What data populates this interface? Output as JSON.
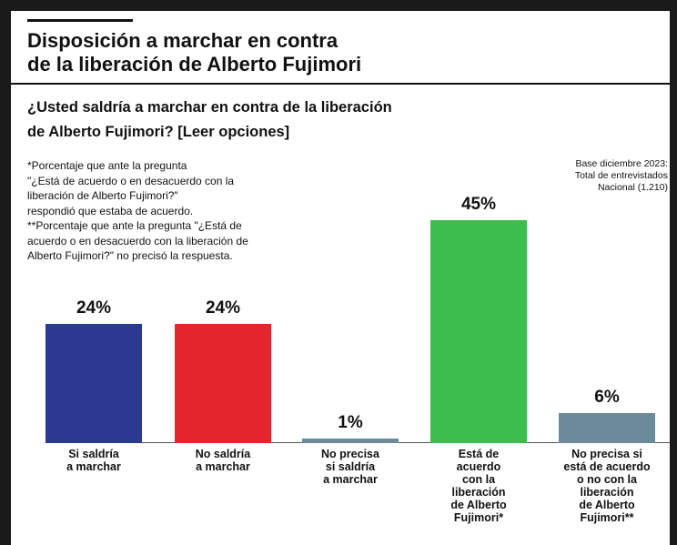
{
  "chart_data": {
    "type": "bar",
    "title": [
      "Disposición a marchar en contra",
      "de la liberación de Alberto Fujimori"
    ],
    "subtitle": [
      "¿Usted saldría a marchar en contra de la liberación",
      "de Alberto Fujimori? [Leer opciones]"
    ],
    "notes": [
      "*Porcentaje que ante la pregunta",
      "\"¿Está de acuerdo o en desacuerdo con la",
      "liberación de Alberto Fujimori?\"",
      "respondió que estaba de acuerdo.",
      "**Porcentaje que ante la pregunta \"¿Está de",
      "acuerdo o en desacuerdo con la liberación de",
      "Alberto Fujimori?\" no precisó la respuesta."
    ],
    "base": [
      "Base diciembre 2023:",
      "Total de entrevistados",
      "Nacional (1.210)"
    ],
    "categories": [
      "Si saldría\na marchar",
      "No saldría\na marchar",
      "No precisa\nsi saldría\na marchar",
      "Está de\nacuerdo\ncon la\nliberación\nde Alberto\nFujimori*",
      "No precisa si\nestá de acuerdo\no no con la\nliberación\nde Alberto\nFujimori**"
    ],
    "values": [
      24,
      24,
      1,
      45,
      6
    ],
    "value_labels": [
      "24%",
      "24%",
      "1%",
      "45%",
      "6%"
    ],
    "colors": [
      "#2b3990",
      "#e3262b",
      "#6b8b9b",
      "#3dbd4b",
      "#6b8b9b"
    ]
  }
}
